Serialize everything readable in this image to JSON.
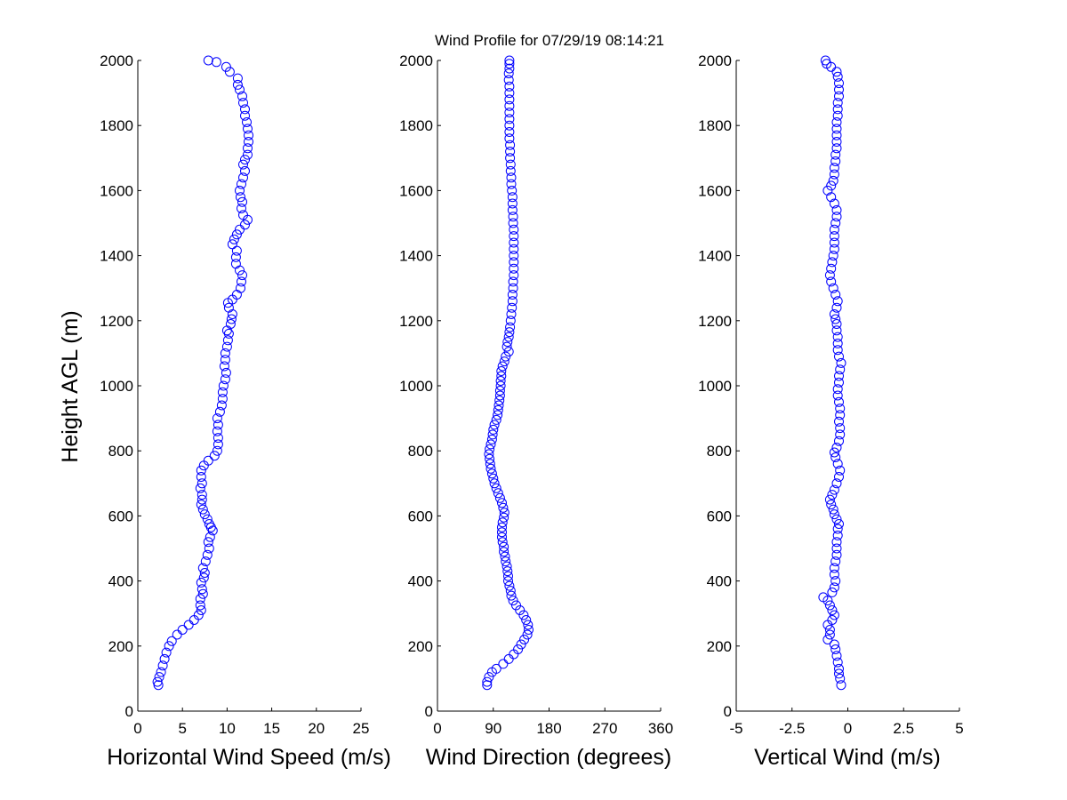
{
  "figure": {
    "title": "Wind Profile for  07/29/19 08:14:21",
    "marker_color": "#0000ff"
  },
  "chart_data": [
    {
      "type": "scatter",
      "name": "horizontal-wind-speed",
      "xlabel": "Horizontal Wind Speed (m/s)",
      "ylabel": "Height AGL (m)",
      "xlim": [
        0,
        25
      ],
      "ylim": [
        0,
        2000
      ],
      "xticks": [
        "0",
        "5",
        "10",
        "15",
        "20",
        "25"
      ],
      "yticks": [
        "0",
        "200",
        "400",
        "600",
        "800",
        "1000",
        "1200",
        "1400",
        "1600",
        "1800",
        "2000"
      ],
      "grid": false,
      "points": [
        [
          2.3,
          80
        ],
        [
          2.2,
          90
        ],
        [
          2.4,
          105
        ],
        [
          2.6,
          120
        ],
        [
          2.8,
          140
        ],
        [
          3.0,
          160
        ],
        [
          3.2,
          180
        ],
        [
          3.5,
          200
        ],
        [
          3.8,
          215
        ],
        [
          4.4,
          235
        ],
        [
          5.0,
          250
        ],
        [
          5.7,
          265
        ],
        [
          6.3,
          280
        ],
        [
          6.8,
          295
        ],
        [
          7.1,
          310
        ],
        [
          7.0,
          325
        ],
        [
          7.0,
          345
        ],
        [
          7.3,
          360
        ],
        [
          7.2,
          375
        ],
        [
          7.1,
          395
        ],
        [
          7.4,
          410
        ],
        [
          7.5,
          425
        ],
        [
          7.3,
          440
        ],
        [
          7.6,
          460
        ],
        [
          7.8,
          480
        ],
        [
          8.0,
          500
        ],
        [
          7.9,
          520
        ],
        [
          8.1,
          535
        ],
        [
          8.4,
          555
        ],
        [
          8.2,
          565
        ],
        [
          8.0,
          575
        ],
        [
          7.8,
          590
        ],
        [
          7.5,
          605
        ],
        [
          7.3,
          620
        ],
        [
          7.1,
          635
        ],
        [
          7.2,
          650
        ],
        [
          7.2,
          665
        ],
        [
          7.0,
          685
        ],
        [
          7.2,
          700
        ],
        [
          7.1,
          720
        ],
        [
          7.1,
          740
        ],
        [
          7.4,
          755
        ],
        [
          7.9,
          770
        ],
        [
          8.6,
          785
        ],
        [
          8.9,
          800
        ],
        [
          9.0,
          820
        ],
        [
          9.0,
          840
        ],
        [
          8.9,
          860
        ],
        [
          9.0,
          880
        ],
        [
          8.9,
          900
        ],
        [
          9.2,
          920
        ],
        [
          9.4,
          940
        ],
        [
          9.5,
          960
        ],
        [
          9.5,
          980
        ],
        [
          9.6,
          1000
        ],
        [
          9.8,
          1020
        ],
        [
          9.9,
          1040
        ],
        [
          9.7,
          1060
        ],
        [
          9.8,
          1080
        ],
        [
          9.8,
          1100
        ],
        [
          10.0,
          1120
        ],
        [
          10.1,
          1140
        ],
        [
          10.2,
          1160
        ],
        [
          10.0,
          1170
        ],
        [
          10.4,
          1190
        ],
        [
          10.5,
          1205
        ],
        [
          10.6,
          1220
        ],
        [
          10.2,
          1240
        ],
        [
          10.1,
          1255
        ],
        [
          10.6,
          1265
        ],
        [
          11.1,
          1280
        ],
        [
          11.5,
          1300
        ],
        [
          11.6,
          1320
        ],
        [
          11.7,
          1340
        ],
        [
          11.4,
          1355
        ],
        [
          11.0,
          1375
        ],
        [
          11.0,
          1395
        ],
        [
          11.1,
          1415
        ],
        [
          10.6,
          1435
        ],
        [
          10.8,
          1450
        ],
        [
          11.1,
          1465
        ],
        [
          11.4,
          1480
        ],
        [
          12.0,
          1495
        ],
        [
          12.3,
          1510
        ],
        [
          11.8,
          1525
        ],
        [
          11.6,
          1545
        ],
        [
          11.7,
          1565
        ],
        [
          11.5,
          1580
        ],
        [
          11.4,
          1600
        ],
        [
          11.6,
          1620
        ],
        [
          11.8,
          1640
        ],
        [
          12.0,
          1660
        ],
        [
          11.8,
          1680
        ],
        [
          12.0,
          1695
        ],
        [
          12.3,
          1710
        ],
        [
          12.3,
          1730
        ],
        [
          12.4,
          1750
        ],
        [
          12.4,
          1770
        ],
        [
          12.3,
          1790
        ],
        [
          12.2,
          1810
        ],
        [
          12.0,
          1830
        ],
        [
          12.0,
          1850
        ],
        [
          11.8,
          1870
        ],
        [
          11.7,
          1890
        ],
        [
          11.4,
          1910
        ],
        [
          11.2,
          1925
        ],
        [
          11.2,
          1945
        ],
        [
          10.3,
          1965
        ],
        [
          9.9,
          1980
        ],
        [
          8.8,
          1995
        ],
        [
          7.9,
          2000
        ]
      ]
    },
    {
      "type": "scatter",
      "name": "wind-direction",
      "xlabel": "Wind Direction (degrees)",
      "ylabel": "",
      "xlim": [
        0,
        360
      ],
      "ylim": [
        0,
        2000
      ],
      "xticks": [
        "0",
        "90",
        "180",
        "270",
        "360"
      ],
      "yticks": [
        "0",
        "200",
        "400",
        "600",
        "800",
        "1000",
        "1200",
        "1400",
        "1600",
        "1800",
        "2000"
      ],
      "grid": false,
      "points": [
        [
          80,
          80
        ],
        [
          80,
          90
        ],
        [
          83,
          105
        ],
        [
          88,
          120
        ],
        [
          95,
          130
        ],
        [
          106,
          145
        ],
        [
          115,
          160
        ],
        [
          123,
          175
        ],
        [
          130,
          190
        ],
        [
          135,
          205
        ],
        [
          140,
          220
        ],
        [
          145,
          235
        ],
        [
          147,
          250
        ],
        [
          146,
          265
        ],
        [
          143,
          280
        ],
        [
          139,
          295
        ],
        [
          133,
          310
        ],
        [
          127,
          325
        ],
        [
          122,
          340
        ],
        [
          119,
          355
        ],
        [
          118,
          370
        ],
        [
          116,
          385
        ],
        [
          114,
          400
        ],
        [
          114,
          415
        ],
        [
          113,
          430
        ],
        [
          112,
          445
        ],
        [
          110,
          460
        ],
        [
          109,
          475
        ],
        [
          107,
          490
        ],
        [
          107,
          505
        ],
        [
          105,
          520
        ],
        [
          104,
          535
        ],
        [
          104,
          550
        ],
        [
          104,
          565
        ],
        [
          105,
          580
        ],
        [
          107,
          595
        ],
        [
          108,
          610
        ],
        [
          106,
          625
        ],
        [
          104,
          640
        ],
        [
          101,
          655
        ],
        [
          98,
          670
        ],
        [
          95,
          685
        ],
        [
          92,
          700
        ],
        [
          90,
          715
        ],
        [
          88,
          730
        ],
        [
          86,
          745
        ],
        [
          85,
          760
        ],
        [
          84,
          775
        ],
        [
          83,
          790
        ],
        [
          84,
          805
        ],
        [
          86,
          820
        ],
        [
          88,
          835
        ],
        [
          89,
          850
        ],
        [
          90,
          865
        ],
        [
          92,
          880
        ],
        [
          95,
          895
        ],
        [
          97,
          910
        ],
        [
          98,
          925
        ],
        [
          99,
          940
        ],
        [
          100,
          955
        ],
        [
          101,
          970
        ],
        [
          101,
          985
        ],
        [
          102,
          1000
        ],
        [
          102,
          1015
        ],
        [
          103,
          1030
        ],
        [
          103,
          1045
        ],
        [
          105,
          1060
        ],
        [
          108,
          1075
        ],
        [
          110,
          1090
        ],
        [
          115,
          1105
        ],
        [
          112,
          1120
        ],
        [
          113,
          1135
        ],
        [
          115,
          1150
        ],
        [
          116,
          1165
        ],
        [
          117,
          1180
        ],
        [
          118,
          1200
        ],
        [
          119,
          1220
        ],
        [
          120,
          1240
        ],
        [
          121,
          1260
        ],
        [
          121,
          1280
        ],
        [
          122,
          1300
        ],
        [
          122,
          1320
        ],
        [
          123,
          1340
        ],
        [
          123,
          1360
        ],
        [
          123,
          1380
        ],
        [
          123,
          1400
        ],
        [
          123,
          1420
        ],
        [
          123,
          1440
        ],
        [
          123,
          1460
        ],
        [
          123,
          1480
        ],
        [
          122,
          1500
        ],
        [
          122,
          1520
        ],
        [
          121,
          1540
        ],
        [
          121,
          1560
        ],
        [
          121,
          1580
        ],
        [
          120,
          1600
        ],
        [
          119,
          1620
        ],
        [
          119,
          1640
        ],
        [
          118,
          1660
        ],
        [
          118,
          1680
        ],
        [
          117,
          1700
        ],
        [
          117,
          1720
        ],
        [
          117,
          1740
        ],
        [
          116,
          1760
        ],
        [
          116,
          1780
        ],
        [
          116,
          1800
        ],
        [
          116,
          1820
        ],
        [
          116,
          1840
        ],
        [
          116,
          1860
        ],
        [
          116,
          1880
        ],
        [
          116,
          1900
        ],
        [
          116,
          1920
        ],
        [
          115,
          1940
        ],
        [
          115,
          1960
        ],
        [
          116,
          1975
        ],
        [
          116,
          1990
        ],
        [
          116,
          2000
        ]
      ]
    },
    {
      "type": "scatter",
      "name": "vertical-wind",
      "xlabel": "Vertical Wind (m/s)",
      "ylabel": "",
      "xlim": [
        -5,
        5
      ],
      "ylim": [
        0,
        2000
      ],
      "xticks": [
        "-5",
        "-2.5",
        "0",
        "2.5",
        "5"
      ],
      "yticks": [
        "0",
        "200",
        "400",
        "600",
        "800",
        "1000",
        "1200",
        "1400",
        "1600",
        "1800",
        "2000"
      ],
      "grid": false,
      "points": [
        [
          -0.3,
          80
        ],
        [
          -0.35,
          100
        ],
        [
          -0.4,
          115
        ],
        [
          -0.4,
          130
        ],
        [
          -0.45,
          150
        ],
        [
          -0.5,
          170
        ],
        [
          -0.55,
          190
        ],
        [
          -0.6,
          205
        ],
        [
          -0.9,
          220
        ],
        [
          -0.8,
          235
        ],
        [
          -0.8,
          250
        ],
        [
          -0.9,
          265
        ],
        [
          -0.7,
          280
        ],
        [
          -0.6,
          295
        ],
        [
          -0.7,
          310
        ],
        [
          -0.8,
          325
        ],
        [
          -0.9,
          340
        ],
        [
          -1.1,
          350
        ],
        [
          -0.7,
          365
        ],
        [
          -0.6,
          380
        ],
        [
          -0.55,
          400
        ],
        [
          -0.6,
          420
        ],
        [
          -0.6,
          440
        ],
        [
          -0.55,
          460
        ],
        [
          -0.5,
          480
        ],
        [
          -0.5,
          500
        ],
        [
          -0.5,
          520
        ],
        [
          -0.45,
          540
        ],
        [
          -0.45,
          560
        ],
        [
          -0.4,
          575
        ],
        [
          -0.5,
          590
        ],
        [
          -0.6,
          605
        ],
        [
          -0.65,
          620
        ],
        [
          -0.75,
          635
        ],
        [
          -0.8,
          650
        ],
        [
          -0.7,
          665
        ],
        [
          -0.6,
          680
        ],
        [
          -0.5,
          700
        ],
        [
          -0.4,
          720
        ],
        [
          -0.35,
          740
        ],
        [
          -0.45,
          760
        ],
        [
          -0.55,
          780
        ],
        [
          -0.6,
          795
        ],
        [
          -0.5,
          810
        ],
        [
          -0.4,
          830
        ],
        [
          -0.35,
          850
        ],
        [
          -0.35,
          870
        ],
        [
          -0.4,
          890
        ],
        [
          -0.35,
          910
        ],
        [
          -0.35,
          930
        ],
        [
          -0.4,
          950
        ],
        [
          -0.45,
          970
        ],
        [
          -0.45,
          990
        ],
        [
          -0.4,
          1010
        ],
        [
          -0.4,
          1030
        ],
        [
          -0.35,
          1050
        ],
        [
          -0.3,
          1070
        ],
        [
          -0.4,
          1090
        ],
        [
          -0.45,
          1110
        ],
        [
          -0.45,
          1130
        ],
        [
          -0.45,
          1150
        ],
        [
          -0.5,
          1170
        ],
        [
          -0.5,
          1190
        ],
        [
          -0.55,
          1205
        ],
        [
          -0.6,
          1220
        ],
        [
          -0.5,
          1240
        ],
        [
          -0.45,
          1260
        ],
        [
          -0.55,
          1280
        ],
        [
          -0.65,
          1300
        ],
        [
          -0.75,
          1320
        ],
        [
          -0.8,
          1340
        ],
        [
          -0.75,
          1360
        ],
        [
          -0.7,
          1380
        ],
        [
          -0.65,
          1400
        ],
        [
          -0.6,
          1420
        ],
        [
          -0.6,
          1440
        ],
        [
          -0.6,
          1460
        ],
        [
          -0.6,
          1480
        ],
        [
          -0.55,
          1500
        ],
        [
          -0.5,
          1520
        ],
        [
          -0.5,
          1540
        ],
        [
          -0.6,
          1560
        ],
        [
          -0.75,
          1580
        ],
        [
          -0.9,
          1600
        ],
        [
          -0.75,
          1615
        ],
        [
          -0.65,
          1630
        ],
        [
          -0.6,
          1650
        ],
        [
          -0.6,
          1670
        ],
        [
          -0.55,
          1690
        ],
        [
          -0.55,
          1710
        ],
        [
          -0.5,
          1730
        ],
        [
          -0.5,
          1750
        ],
        [
          -0.5,
          1770
        ],
        [
          -0.5,
          1790
        ],
        [
          -0.5,
          1810
        ],
        [
          -0.45,
          1830
        ],
        [
          -0.45,
          1850
        ],
        [
          -0.45,
          1870
        ],
        [
          -0.4,
          1890
        ],
        [
          -0.4,
          1910
        ],
        [
          -0.4,
          1930
        ],
        [
          -0.45,
          1950
        ],
        [
          -0.5,
          1965
        ],
        [
          -0.75,
          1980
        ],
        [
          -0.95,
          1990
        ],
        [
          -1.0,
          2000
        ]
      ]
    }
  ]
}
